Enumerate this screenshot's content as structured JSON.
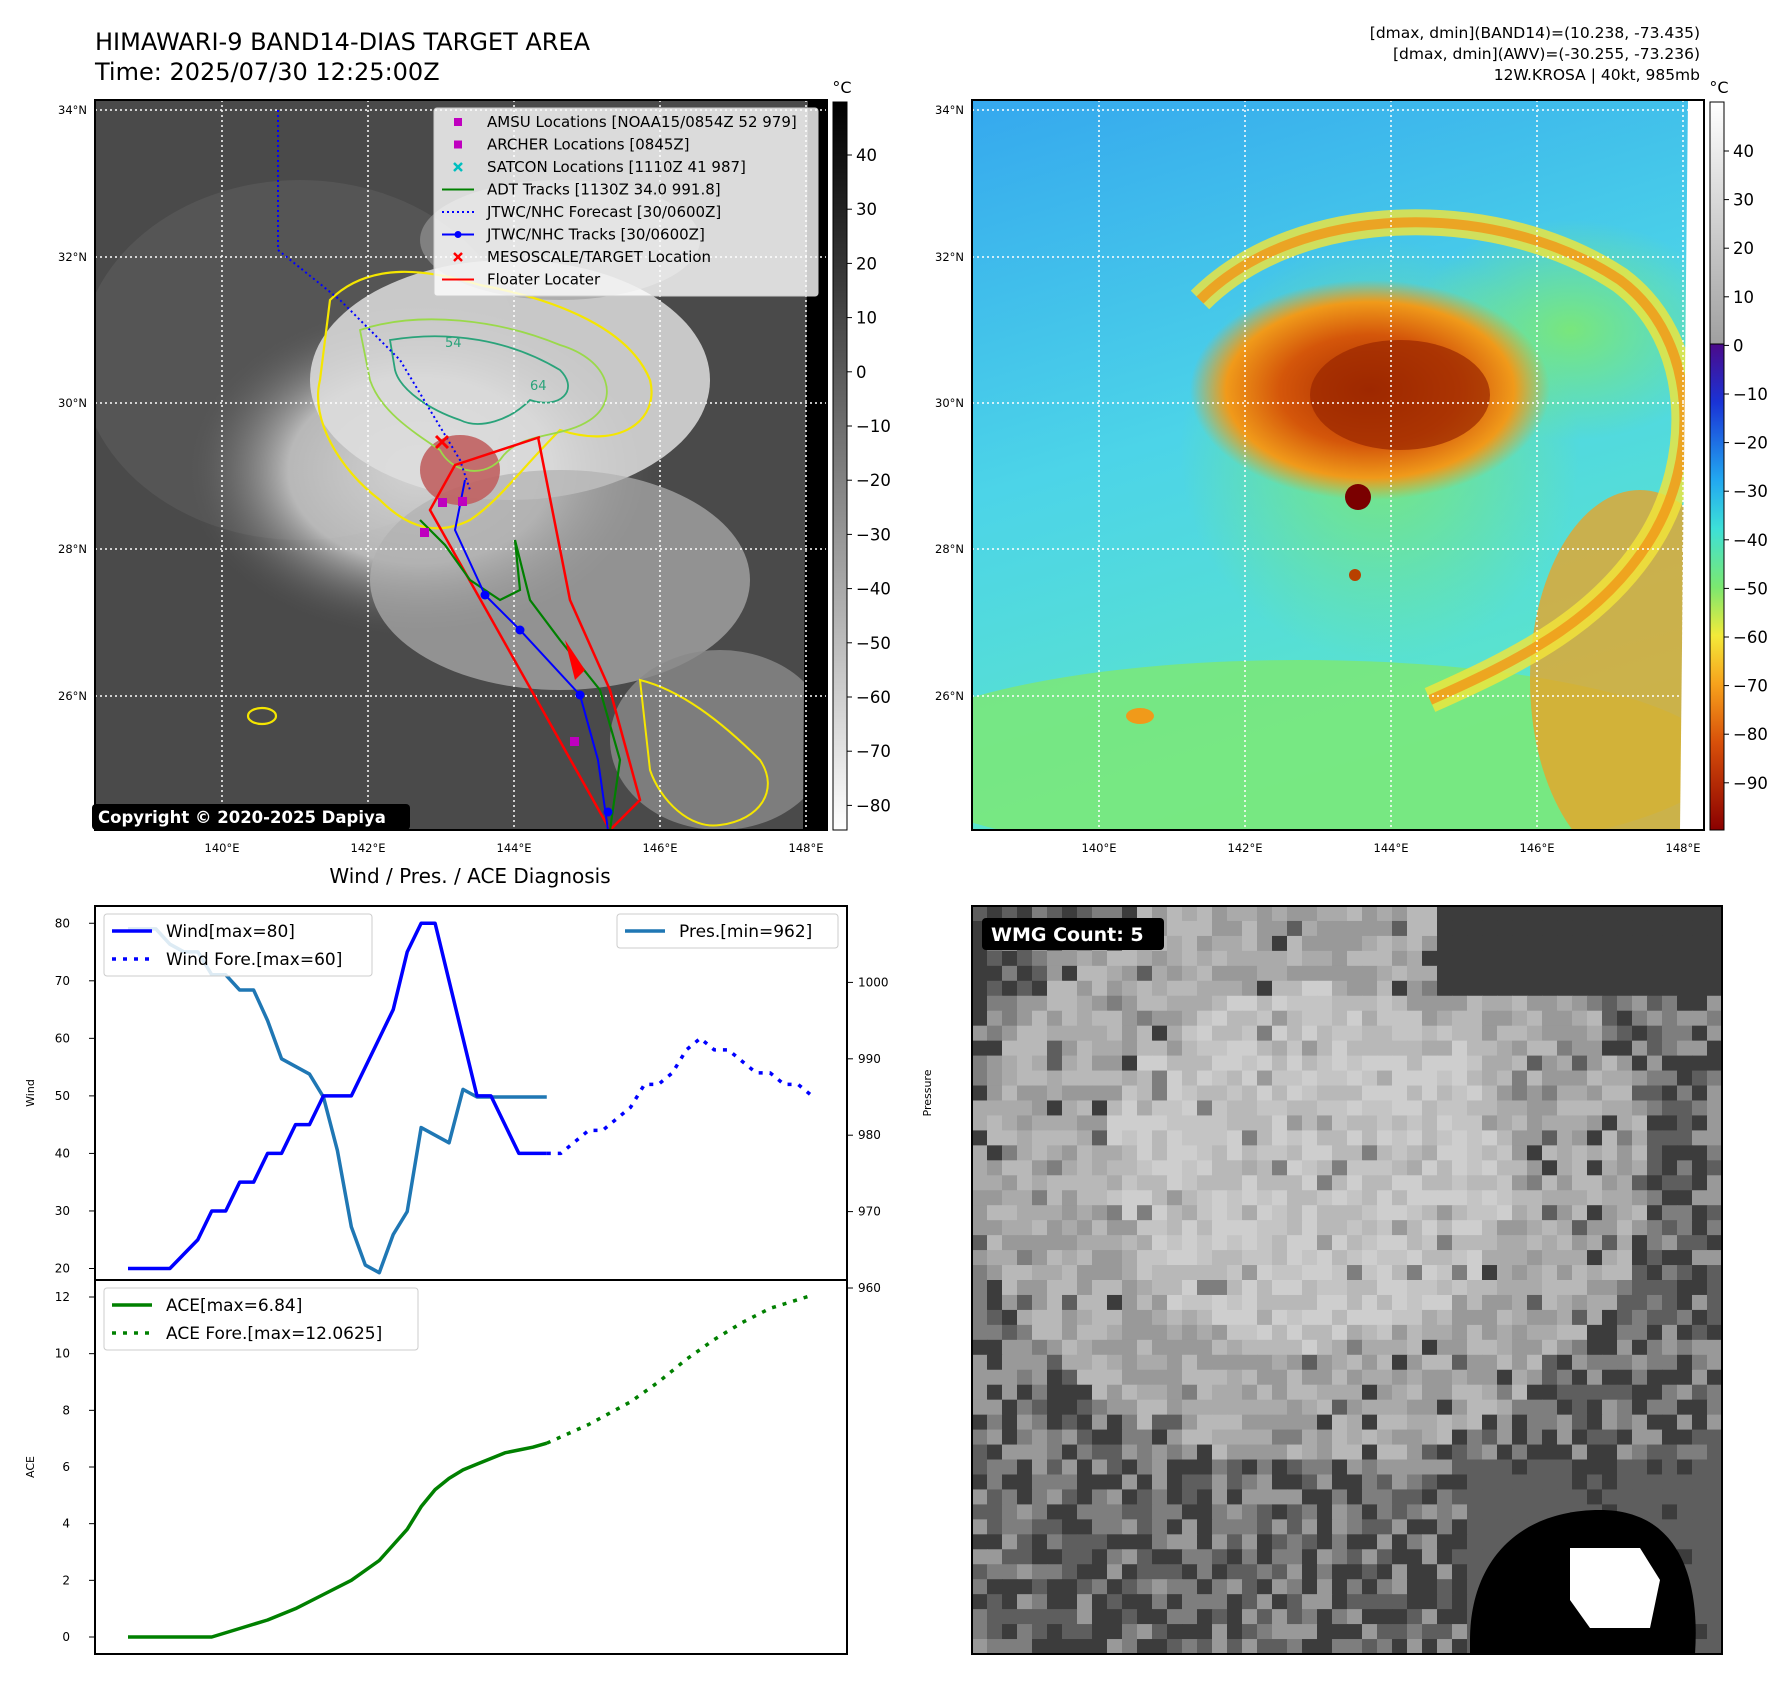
{
  "header": {
    "title_line1": "HIMAWARI-9 BAND14-DIAS TARGET AREA",
    "title_line2": "Time: 2025/07/30 12:25:00Z",
    "info_line1": "[dmax, dmin](BAND14)=(10.238, -73.435)",
    "info_line2": "[dmax, dmin](AWV)=(-30.255, -73.236)",
    "info_line3": "12W.KROSA | 40kt, 985mb"
  },
  "map": {
    "lat_labels": [
      "34°N",
      "32°N",
      "30°N",
      "28°N",
      "26°N"
    ],
    "lon_labels": [
      "140°E",
      "142°E",
      "144°E",
      "146°E",
      "148°E"
    ],
    "copyright": "Copyright © 2020-2025 Dapiya",
    "contour_labels": [
      "54",
      "64"
    ],
    "colorbar1": {
      "unit": "°C",
      "ticks": [
        "40",
        "30",
        "20",
        "10",
        "0",
        "−10",
        "−20",
        "−30",
        "−40",
        "−50",
        "−60",
        "−70",
        "−80"
      ]
    },
    "colorbar2": {
      "unit": "°C",
      "ticks": [
        "40",
        "30",
        "20",
        "10",
        "0",
        "−10",
        "−20",
        "−30",
        "−40",
        "−50",
        "−60",
        "−70",
        "−80",
        "−90"
      ]
    },
    "legend": [
      {
        "label": "AMSU Locations [NOAA15/0854Z 52 979]",
        "marker": "square",
        "color": "#bf00bf"
      },
      {
        "label": "ARCHER Locations [0845Z]",
        "marker": "square",
        "color": "#bf00bf"
      },
      {
        "label": "SATCON Locations [1110Z 41 987]",
        "marker": "x",
        "color": "#00bfbf"
      },
      {
        "label": "ADT Tracks [1130Z 34.0 991.8]",
        "marker": "line",
        "color": "#008000"
      },
      {
        "label": "JTWC/NHC Forecast [30/0600Z]",
        "marker": "dotted",
        "color": "#0000ff"
      },
      {
        "label": "JTWC/NHC Tracks [30/0600Z]",
        "marker": "line-dot",
        "color": "#0000ff"
      },
      {
        "label": "MESOSCALE/TARGET Location",
        "marker": "x",
        "color": "#ff0000"
      },
      {
        "label": "Floater Locater",
        "marker": "line",
        "color": "#ff0000"
      }
    ]
  },
  "wmg": {
    "label": "WMG Count: 5"
  },
  "chart_data": [
    {
      "type": "line",
      "title": "Wind / Pres. / ACE Diagnosis",
      "ylabel": "Wind",
      "y2label": "Pressure",
      "ylim": [
        18,
        83
      ],
      "y2lim": [
        960,
        1010
      ],
      "yticks": [
        "20",
        "30",
        "40",
        "50",
        "60",
        "70",
        "80"
      ],
      "y2ticks": [
        "960",
        "970",
        "980",
        "990",
        "1000"
      ],
      "series": [
        {
          "name": "Wind[max=80]",
          "color": "#0000ff",
          "style": "solid",
          "x": [
            0,
            3,
            5,
            6,
            7,
            8,
            9,
            10,
            11,
            12,
            13,
            14,
            15,
            16,
            17,
            18,
            19,
            20,
            21,
            22,
            23,
            24,
            25,
            26,
            27,
            28,
            29,
            30
          ],
          "values": [
            20,
            20,
            25,
            30,
            30,
            35,
            35,
            40,
            40,
            45,
            45,
            50,
            50,
            50,
            55,
            60,
            65,
            75,
            80,
            80,
            70,
            60,
            50,
            50,
            45,
            40,
            40,
            40
          ]
        },
        {
          "name": "Wind Fore.[max=60]",
          "color": "#0000ff",
          "style": "dotted",
          "x": [
            30,
            31,
            32,
            33,
            34,
            35,
            36,
            37,
            38,
            39,
            40,
            41,
            42,
            43,
            44,
            45,
            46,
            47,
            48,
            49
          ],
          "values": [
            40,
            40,
            42,
            44,
            44,
            46,
            48,
            52,
            52,
            54,
            58,
            60,
            58,
            58,
            56,
            54,
            54,
            52,
            52,
            50
          ]
        },
        {
          "name": "Pres.[min=962]",
          "color": "#1f77b4",
          "style": "solid",
          "x": [
            0,
            2,
            3,
            4,
            5,
            6,
            7,
            8,
            9,
            10,
            11,
            12,
            13,
            14,
            15,
            16,
            17,
            18,
            19,
            20,
            21,
            22,
            23,
            24,
            25,
            26,
            27,
            28,
            29,
            30
          ],
          "values": [
            1007,
            1007,
            1005,
            1004,
            1004,
            1001,
            1001,
            999,
            999,
            995,
            990,
            989,
            988,
            985,
            978,
            968,
            963,
            962,
            967,
            970,
            981,
            980,
            979,
            986,
            985,
            985,
            985,
            985,
            985,
            985
          ]
        }
      ]
    },
    {
      "type": "line",
      "ylabel": "ACE",
      "ylim": [
        -0.6,
        12.6
      ],
      "yticks": [
        "0",
        "2",
        "4",
        "6",
        "8",
        "10",
        "12"
      ],
      "series": [
        {
          "name": "ACE[max=6.84]",
          "color": "#008000",
          "style": "solid",
          "x": [
            0,
            3,
            6,
            8,
            10,
            12,
            14,
            16,
            18,
            20,
            21,
            22,
            23,
            24,
            25,
            26,
            27,
            28,
            29,
            30
          ],
          "values": [
            0,
            0,
            0,
            0.3,
            0.6,
            1.0,
            1.5,
            2.0,
            2.7,
            3.8,
            4.6,
            5.2,
            5.6,
            5.9,
            6.1,
            6.3,
            6.5,
            6.6,
            6.7,
            6.84
          ]
        },
        {
          "name": "ACE Fore.[max=12.0625]",
          "color": "#008000",
          "style": "dotted",
          "x": [
            30,
            33,
            36,
            38,
            40,
            42,
            44,
            46,
            49
          ],
          "values": [
            6.84,
            7.5,
            8.3,
            9.0,
            9.8,
            10.5,
            11.1,
            11.6,
            12.0625
          ]
        }
      ]
    }
  ]
}
